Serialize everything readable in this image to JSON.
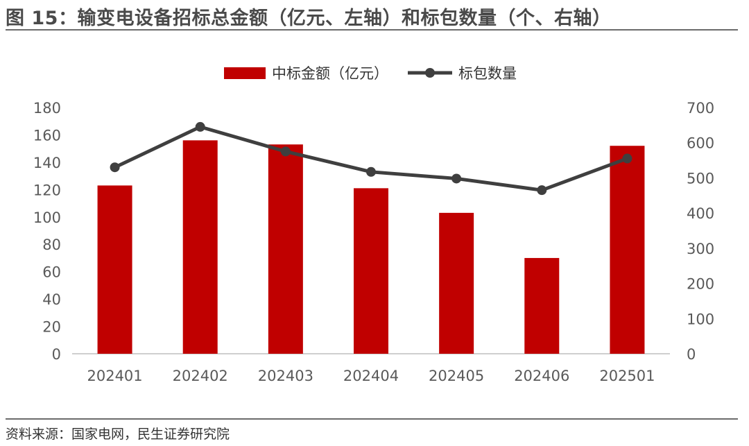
{
  "header": {
    "title": "图 15：输变电设备招标总金额（亿元、左轴）和标包数量（个、右轴）"
  },
  "footer": {
    "source": "资料来源：国家电网，民生证券研究院"
  },
  "chart_data": {
    "type": "bar+line",
    "categories": [
      "202401",
      "202402",
      "202403",
      "202404",
      "202405",
      "202406",
      "202501"
    ],
    "series": [
      {
        "name": "中标金额（亿元）",
        "type": "bar",
        "axis": "left",
        "color": "#c00000",
        "values": [
          123,
          156,
          153,
          121,
          103,
          70,
          152
        ]
      },
      {
        "name": "标包数量",
        "type": "line",
        "axis": "right",
        "color": "#3f3f3f",
        "values": [
          530,
          645,
          575,
          517,
          498,
          465,
          555
        ]
      }
    ],
    "y_left": {
      "min": 0,
      "max": 180,
      "step": 20,
      "ticks": [
        "0",
        "20",
        "40",
        "60",
        "80",
        "100",
        "120",
        "140",
        "160",
        "180"
      ]
    },
    "y_right": {
      "min": 0,
      "max": 700,
      "step": 100,
      "ticks": [
        "0",
        "100",
        "200",
        "300",
        "400",
        "500",
        "600",
        "700"
      ]
    },
    "legend": {
      "position": "top-center"
    },
    "grid": false
  }
}
